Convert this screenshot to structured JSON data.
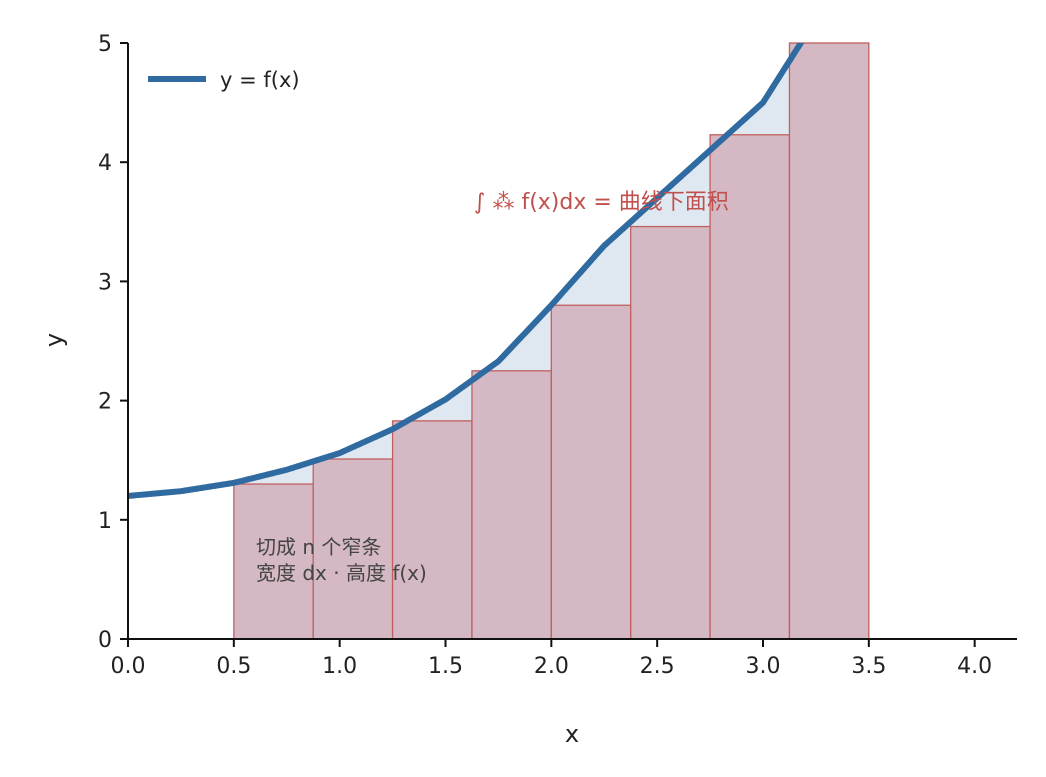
{
  "chart_data": {
    "type": "line",
    "xlabel": "x",
    "ylabel": "y",
    "xlim": [
      0,
      4.2
    ],
    "ylim": [
      0,
      5
    ],
    "x_ticks": [
      "0.0",
      "0.5",
      "1.0",
      "1.5",
      "2.0",
      "2.5",
      "3.0",
      "3.5",
      "4.0"
    ],
    "y_ticks": [
      "0",
      "1",
      "2",
      "3",
      "4",
      "5"
    ],
    "grid": false,
    "legend_position": "top-left",
    "series": [
      {
        "name": "y = f(x)",
        "kind": "curve",
        "x": [
          0.0,
          0.25,
          0.5,
          0.75,
          1.0,
          1.25,
          1.5,
          1.75,
          2.0,
          2.25,
          2.5,
          2.75,
          3.0,
          3.25,
          3.5
        ],
        "y": [
          1.2,
          1.24,
          1.31,
          1.42,
          1.56,
          1.76,
          2.01,
          2.33,
          2.8,
          3.3,
          3.7,
          4.1,
          4.5,
          5.2,
          5.8
        ],
        "color": "#2f6aa0"
      }
    ],
    "bars": {
      "x_left": [
        0.5,
        0.875,
        1.25,
        1.625,
        2.0,
        2.375,
        2.75,
        3.125
      ],
      "width": 0.375,
      "heights": [
        1.3,
        1.51,
        1.83,
        2.25,
        2.8,
        3.46,
        4.23,
        5.0
      ],
      "fill": "#d4b8c3",
      "edge": "#c0605e"
    },
    "shaded_region": {
      "x_from": 0.5,
      "x_to": 3.5,
      "fill": "#dfe8f1"
    },
    "annotations": {
      "integral": "∫ ⁂ f(x)dx = 曲线下面积",
      "note_line1": "切成 n 个窄条",
      "note_line2": "宽度 dx · 高度 f(x)"
    }
  }
}
